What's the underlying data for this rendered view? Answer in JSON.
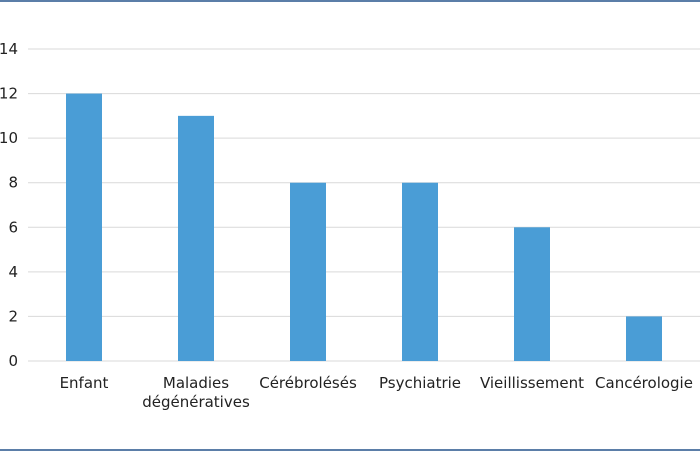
{
  "chart_data": {
    "type": "bar",
    "categories": [
      "Enfant",
      "Maladies dégénératives",
      "Cérébrolésés",
      "Psychiatrie",
      "Vieillissement",
      "Cancérologie"
    ],
    "category_lines": [
      [
        "Enfant"
      ],
      [
        "Maladies",
        "dégénératives"
      ],
      [
        "Cérébrolésés"
      ],
      [
        "Psychiatrie"
      ],
      [
        "Vieillissement"
      ],
      [
        "Cancérologie"
      ]
    ],
    "values": [
      12,
      11,
      8,
      8,
      6,
      2
    ],
    "ylim": [
      0,
      14
    ],
    "yticks": [
      0,
      2,
      4,
      6,
      8,
      10,
      12,
      14
    ],
    "grid": true,
    "colors": {
      "bar": "#4a9dd6",
      "grid": "#d9d9d9",
      "axis": "#d9d9d9",
      "frame": "#5b7ea8"
    }
  }
}
